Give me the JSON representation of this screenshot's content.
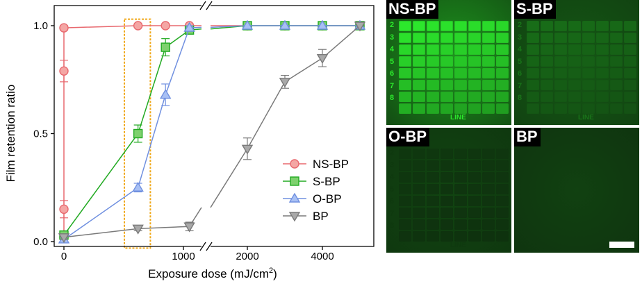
{
  "chart_data": {
    "type": "line",
    "xlabel": "Exposure dose (mJ/cm",
    "xlabel_sup": "2",
    "xlabel_close": ")",
    "ylabel": "Film retention ratio",
    "x_axis_break": true,
    "x_segments": [
      [
        -100,
        1130
      ],
      [
        1300,
        5300
      ]
    ],
    "ylim": [
      0,
      1.05
    ],
    "x_ticks": [
      {
        "value": 0,
        "label": "0"
      },
      {
        "value": 1000,
        "label": "1000"
      },
      {
        "value": 2000,
        "label": "2000"
      },
      {
        "value": 4000,
        "label": "4000"
      }
    ],
    "y_ticks": [
      {
        "value": 0,
        "label": "0.0"
      },
      {
        "value": 0.5,
        "label": "0.5"
      },
      {
        "value": 1.0,
        "label": "1.0"
      }
    ],
    "legend_position": "lower-right",
    "highlight_box": {
      "x_range": [
        500,
        700
      ],
      "y_range": [
        -0.03,
        1.03
      ],
      "color": "#F0A818"
    },
    "series": [
      {
        "name": "NS-BP",
        "marker": "circle",
        "color": "#E8686E",
        "fill": "#F4A6A4",
        "points": [
          [
            0,
            0.02,
            0.01
          ],
          [
            0,
            0.15,
            0.04
          ],
          [
            0,
            0.79,
            0.05
          ],
          [
            0,
            0.99,
            0.01
          ],
          [
            620,
            1.0,
            0.0
          ],
          [
            850,
            1.0,
            0.0
          ],
          [
            1050,
            1.0,
            0.0
          ],
          [
            2000,
            1.0,
            0.0
          ],
          [
            3000,
            1.0,
            0.0
          ],
          [
            4000,
            1.0,
            0.0
          ],
          [
            5000,
            1.0,
            0.0
          ]
        ]
      },
      {
        "name": "S-BP",
        "marker": "square",
        "color": "#22AA22",
        "fill": "#7ED16E",
        "points": [
          [
            0,
            0.03,
            0.01
          ],
          [
            620,
            0.5,
            0.04
          ],
          [
            850,
            0.9,
            0.04
          ],
          [
            1050,
            0.98,
            0.01
          ],
          [
            2000,
            1.0,
            0.0
          ],
          [
            3000,
            1.0,
            0.0
          ],
          [
            4000,
            1.0,
            0.0
          ],
          [
            5000,
            1.0,
            0.0
          ]
        ]
      },
      {
        "name": "O-BP",
        "marker": "triangle-up",
        "color": "#7090E0",
        "fill": "#A8C0F4",
        "points": [
          [
            0,
            0.01,
            0.01
          ],
          [
            620,
            0.25,
            0.02
          ],
          [
            850,
            0.68,
            0.05
          ],
          [
            1050,
            0.99,
            0.01
          ],
          [
            2000,
            1.0,
            0.0
          ],
          [
            3000,
            1.0,
            0.0
          ],
          [
            4000,
            1.0,
            0.0
          ],
          [
            5000,
            1.0,
            0.0
          ]
        ]
      },
      {
        "name": "BP",
        "marker": "triangle-down",
        "color": "#7A7A7A",
        "fill": "#A9A9A9",
        "points": [
          [
            0,
            0.02,
            0.01
          ],
          [
            620,
            0.06,
            0.01
          ],
          [
            1050,
            0.07,
            0.02
          ],
          [
            2000,
            0.43,
            0.05
          ],
          [
            3000,
            0.74,
            0.03
          ],
          [
            4000,
            0.85,
            0.04
          ],
          [
            5000,
            1.0,
            0.0
          ]
        ]
      }
    ]
  },
  "micrographs": {
    "panels": [
      {
        "label": "NS-BP",
        "pattern_intensity": 1.0
      },
      {
        "label": "S-BP",
        "pattern_intensity": 0.35
      },
      {
        "label": "O-BP",
        "pattern_intensity": 0.07
      },
      {
        "label": "BP",
        "pattern_intensity": 0.0
      }
    ],
    "row_labels": [
      "2",
      "3",
      "4",
      "5",
      "6",
      "7",
      "8"
    ],
    "line_label": "LINE",
    "colors": {
      "background": "#0D2A0D",
      "pattern": "#2CE82C",
      "divider": "#FFFFFF"
    }
  }
}
